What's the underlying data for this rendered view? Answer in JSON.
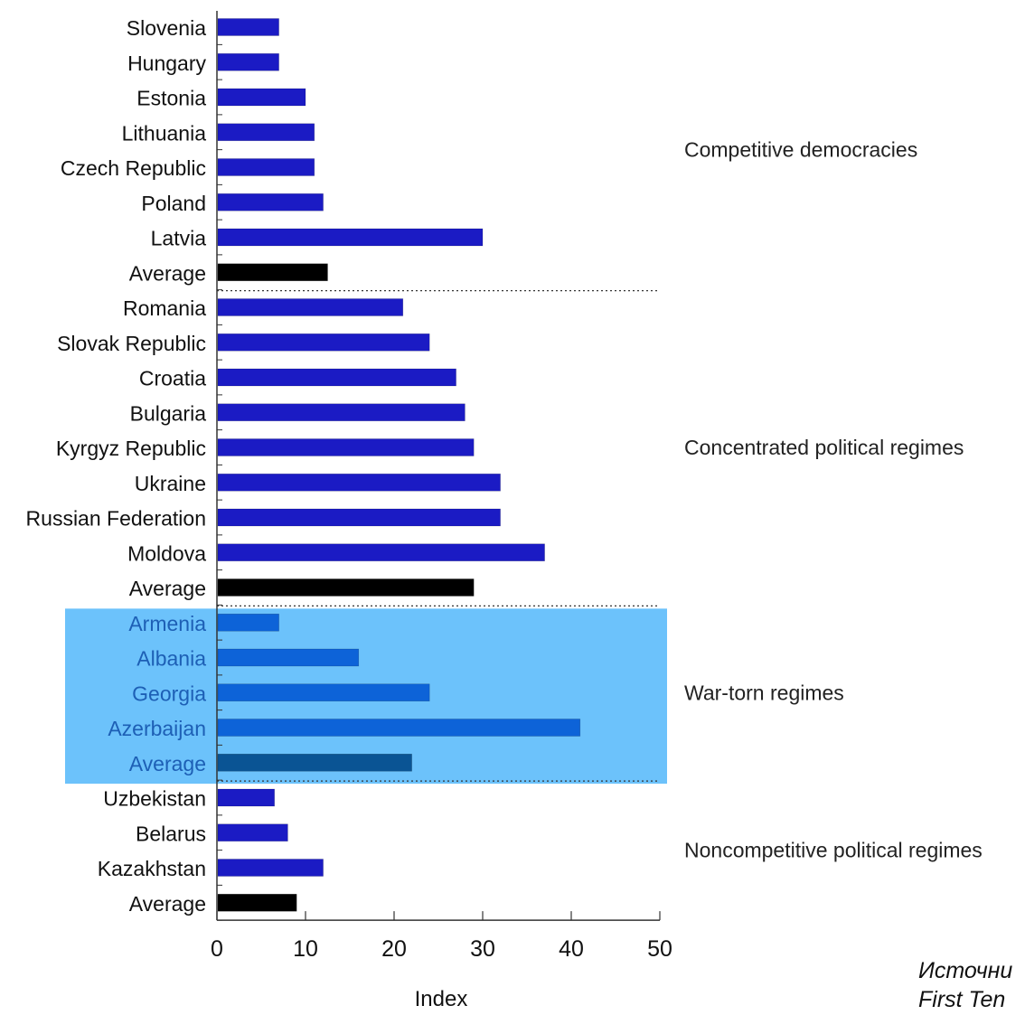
{
  "chart_data": {
    "type": "bar",
    "orientation": "horizontal",
    "xlabel": "Index",
    "xlim": [
      0,
      50
    ],
    "xticks": [
      0,
      10,
      20,
      30,
      40,
      50
    ],
    "groups": [
      {
        "label": "Competitive democracies",
        "highlighted": false,
        "rows": [
          {
            "category": "Slovenia",
            "value": 7
          },
          {
            "category": "Hungary",
            "value": 7
          },
          {
            "category": "Estonia",
            "value": 10
          },
          {
            "category": "Lithuania",
            "value": 11
          },
          {
            "category": "Czech Republic",
            "value": 11
          },
          {
            "category": "Poland",
            "value": 12
          },
          {
            "category": "Latvia",
            "value": 30
          },
          {
            "category": "Average",
            "value": 12.5,
            "is_average": true
          }
        ]
      },
      {
        "label": "Concentrated political regimes",
        "highlighted": false,
        "rows": [
          {
            "category": "Romania",
            "value": 21
          },
          {
            "category": "Slovak Republic",
            "value": 24
          },
          {
            "category": "Croatia",
            "value": 27
          },
          {
            "category": "Bulgaria",
            "value": 28
          },
          {
            "category": "Kyrgyz Republic",
            "value": 29
          },
          {
            "category": "Ukraine",
            "value": 32
          },
          {
            "category": "Russian Federation",
            "value": 32
          },
          {
            "category": "Moldova",
            "value": 37
          },
          {
            "category": "Average",
            "value": 29,
            "is_average": true
          }
        ]
      },
      {
        "label": "War-torn regimes",
        "highlighted": true,
        "rows": [
          {
            "category": "Armenia",
            "value": 7
          },
          {
            "category": "Albania",
            "value": 16
          },
          {
            "category": "Georgia",
            "value": 24
          },
          {
            "category": "Azerbaijan",
            "value": 41
          },
          {
            "category": "Average",
            "value": 22,
            "is_average": true
          }
        ]
      },
      {
        "label": "Noncompetitive political regimes",
        "highlighted": false,
        "rows": [
          {
            "category": "Uzbekistan",
            "value": 6.5
          },
          {
            "category": "Belarus",
            "value": 8
          },
          {
            "category": "Kazakhstan",
            "value": 12
          },
          {
            "category": "Average",
            "value": 9,
            "is_average": true
          }
        ]
      }
    ],
    "colors": {
      "bar": "#1b1bc4",
      "average": "#000000",
      "highlight_background": "#6cc2fb",
      "highlight_bar": "#0d63d8",
      "highlight_average": "#0a5494",
      "highlight_label": "#1d5fb5"
    }
  },
  "source_note": {
    "line1": "Источни",
    "line2": "First Ten"
  }
}
